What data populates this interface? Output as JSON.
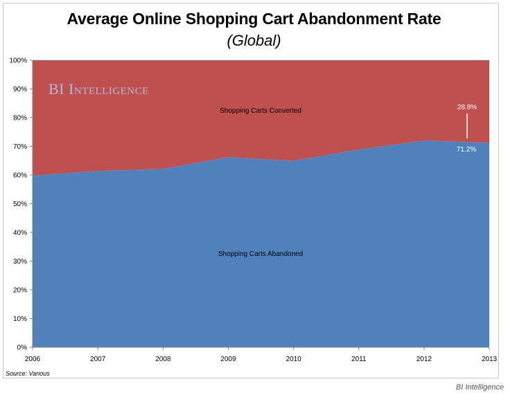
{
  "footer": "BI Intelligence",
  "source": "Source: Various",
  "watermark": "BI Intelligence",
  "colors": {
    "abandoned": "#4f81bd",
    "converted": "#c0504d",
    "axis": "#808080"
  },
  "chart_data": {
    "type": "area",
    "title": "Average Online Shopping Cart Abandonment Rate",
    "subtitle": "(Global)",
    "x": [
      "2006",
      "2007",
      "2008",
      "2009",
      "2010",
      "2011",
      "2012",
      "2013"
    ],
    "ylim": [
      0,
      100
    ],
    "yticks": [
      "0%",
      "10%",
      "20%",
      "30%",
      "40%",
      "50%",
      "60%",
      "70%",
      "80%",
      "90%",
      "100%"
    ],
    "stacked": true,
    "series": [
      {
        "name": "Shopping Carts Abandoned",
        "values": [
          59.8,
          61.4,
          62.1,
          66.2,
          64.9,
          68.9,
          72.0,
          71.2
        ]
      },
      {
        "name": "Shopping Carts Converted",
        "values": [
          40.2,
          38.6,
          37.9,
          33.8,
          35.1,
          31.1,
          28.0,
          28.8
        ]
      }
    ],
    "annotations": [
      {
        "text": "28.8%",
        "x": "2013",
        "series": "Shopping Carts Converted"
      },
      {
        "text": "71.2%",
        "x": "2013",
        "series": "Shopping Carts Abandoned"
      }
    ],
    "grid": false
  }
}
